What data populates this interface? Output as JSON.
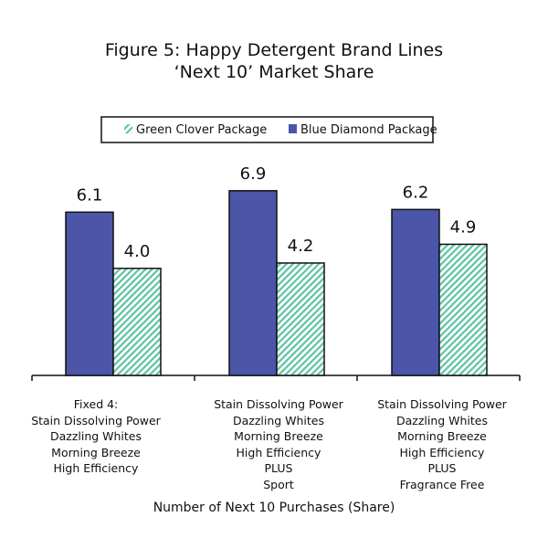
{
  "chart_data": {
    "type": "bar",
    "title": [
      "Figure 5: Happy Detergent Brand Lines",
      "‘Next 10’ Market Share"
    ],
    "xlabel": "Number of Next 10 Purchases (Share)",
    "ylabel": "",
    "ylim": [
      0,
      7.5
    ],
    "grid": false,
    "legend_position": "top",
    "categories": [
      [
        "Fixed 4:",
        "Stain Dissolving Power",
        "Dazzling Whites",
        "Morning Breeze",
        "High Efficiency"
      ],
      [
        "Stain Dissolving Power",
        "Dazzling Whites",
        "Morning Breeze",
        "High Efficiency",
        "PLUS",
        "Sport"
      ],
      [
        "Stain Dissolving Power",
        "Dazzling Whites",
        "Morning Breeze",
        "High Efficiency",
        "PLUS",
        "Fragrance Free"
      ]
    ],
    "series": [
      {
        "name": "Blue Diamond Package",
        "color": "#4b56a8",
        "values": [
          6.1,
          6.9,
          6.2
        ],
        "labels": [
          "6.1",
          "6.9",
          "6.2"
        ]
      },
      {
        "name": "Green Clover Package",
        "color": "#5cc3a4",
        "values": [
          4.0,
          4.2,
          4.9
        ],
        "labels": [
          "4.0",
          "4.2",
          "4.9"
        ]
      }
    ],
    "legend_order": [
      "Green Clover Package",
      "Blue Diamond Package"
    ]
  }
}
